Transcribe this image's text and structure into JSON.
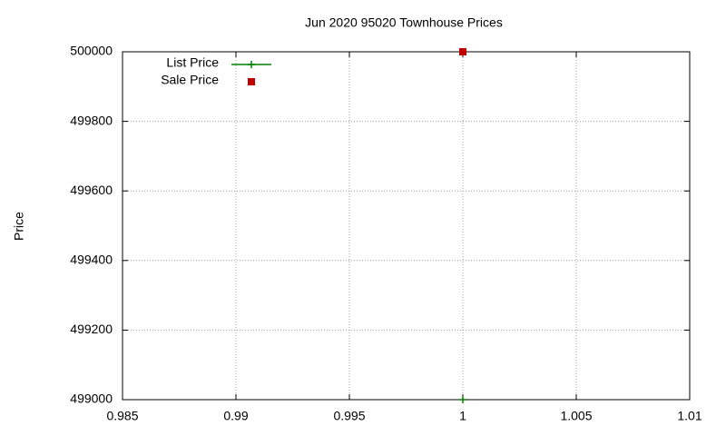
{
  "chart_data": {
    "type": "scatter",
    "title": "Jun 2020 95020 Townhouse Prices",
    "ylabel": "Price",
    "xlim": [
      0.985,
      1.01
    ],
    "xticks": [
      0.985,
      0.99,
      0.995,
      1,
      1.005,
      1.01
    ],
    "ylim": [
      499000,
      500000
    ],
    "yticks": [
      499000,
      499200,
      499400,
      499600,
      499800,
      500000
    ],
    "grid": true,
    "legend": "top left",
    "series": [
      {
        "name": "List Price",
        "color": "#008000",
        "marker": "plus",
        "line": true,
        "x": [
          1
        ],
        "values": [
          499000
        ]
      },
      {
        "name": "Sale Price",
        "color": "#c00000",
        "marker": "square",
        "line": false,
        "x": [
          1
        ],
        "values": [
          500000
        ]
      }
    ]
  }
}
